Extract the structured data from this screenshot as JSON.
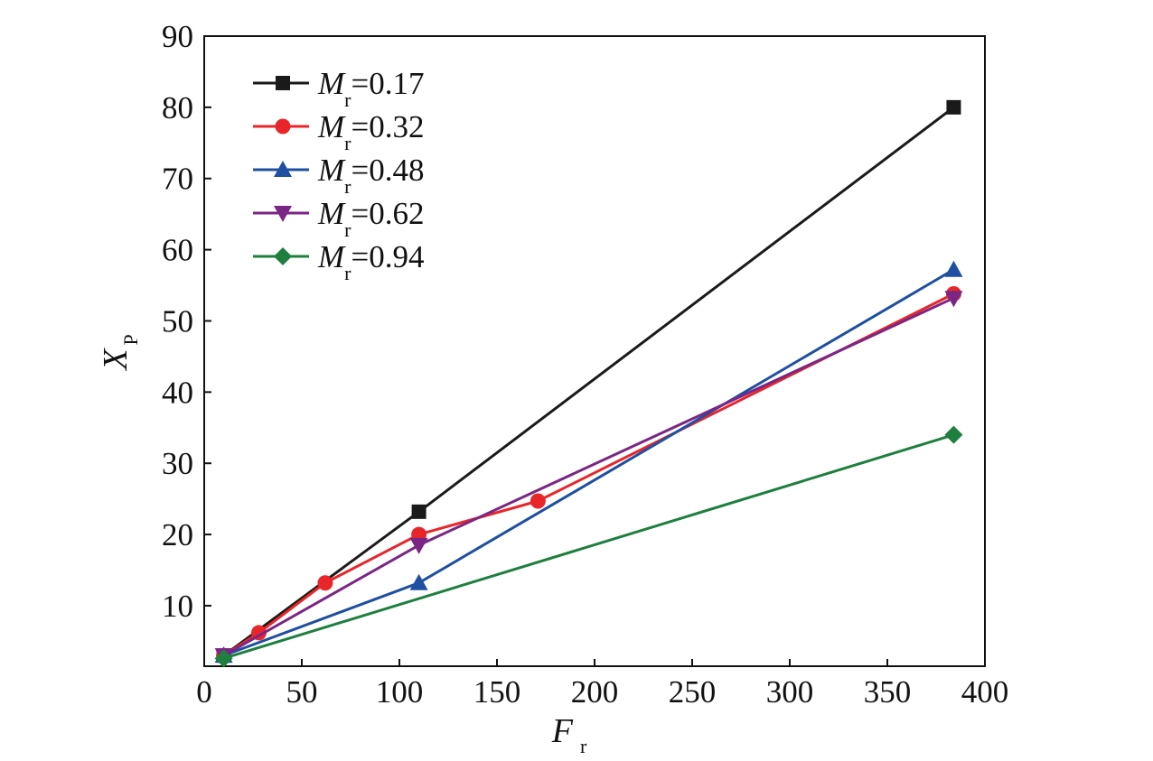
{
  "chart_data": {
    "type": "line",
    "xlabel": {
      "main": "F",
      "sub": "r"
    },
    "ylabel": {
      "main": "X",
      "sub": "P"
    },
    "xlim": [
      0,
      400
    ],
    "ylim": [
      1.5,
      90
    ],
    "xticks": [
      0,
      50,
      100,
      150,
      200,
      250,
      300,
      350,
      400
    ],
    "yticks": [
      10,
      20,
      30,
      40,
      50,
      60,
      70,
      80,
      90
    ],
    "grid": false,
    "legend_position": "top-left",
    "series": [
      {
        "legend_var": "M",
        "legend_sub": "r",
        "legend_value": "=0.17",
        "color": "#1a1a1a",
        "marker": "square",
        "points": [
          [
            10,
            3.0
          ],
          [
            110,
            23.2
          ],
          [
            384,
            80.0
          ]
        ]
      },
      {
        "legend_var": "M",
        "legend_sub": "r",
        "legend_value": "=0.32",
        "color": "#e8262a",
        "marker": "circle",
        "points": [
          [
            10,
            3.0
          ],
          [
            28,
            6.2
          ],
          [
            62,
            13.2
          ],
          [
            110,
            20.0
          ],
          [
            171,
            24.7
          ],
          [
            384,
            53.8
          ]
        ]
      },
      {
        "legend_var": "M",
        "legend_sub": "r",
        "legend_value": "=0.48",
        "color": "#1f4fa0",
        "marker": "triangle-up",
        "points": [
          [
            10,
            3.0
          ],
          [
            110,
            13.2
          ],
          [
            384,
            57.2
          ]
        ]
      },
      {
        "legend_var": "M",
        "legend_sub": "r",
        "legend_value": "=0.62",
        "color": "#7b2685",
        "marker": "triangle-down",
        "points": [
          [
            10,
            3.0
          ],
          [
            110,
            18.5
          ],
          [
            384,
            53.2
          ]
        ]
      },
      {
        "legend_var": "M",
        "legend_sub": "r",
        "legend_value": "=0.94",
        "color": "#1e7f3e",
        "marker": "diamond",
        "points": [
          [
            10,
            2.6
          ],
          [
            384,
            34.0
          ]
        ]
      }
    ]
  }
}
